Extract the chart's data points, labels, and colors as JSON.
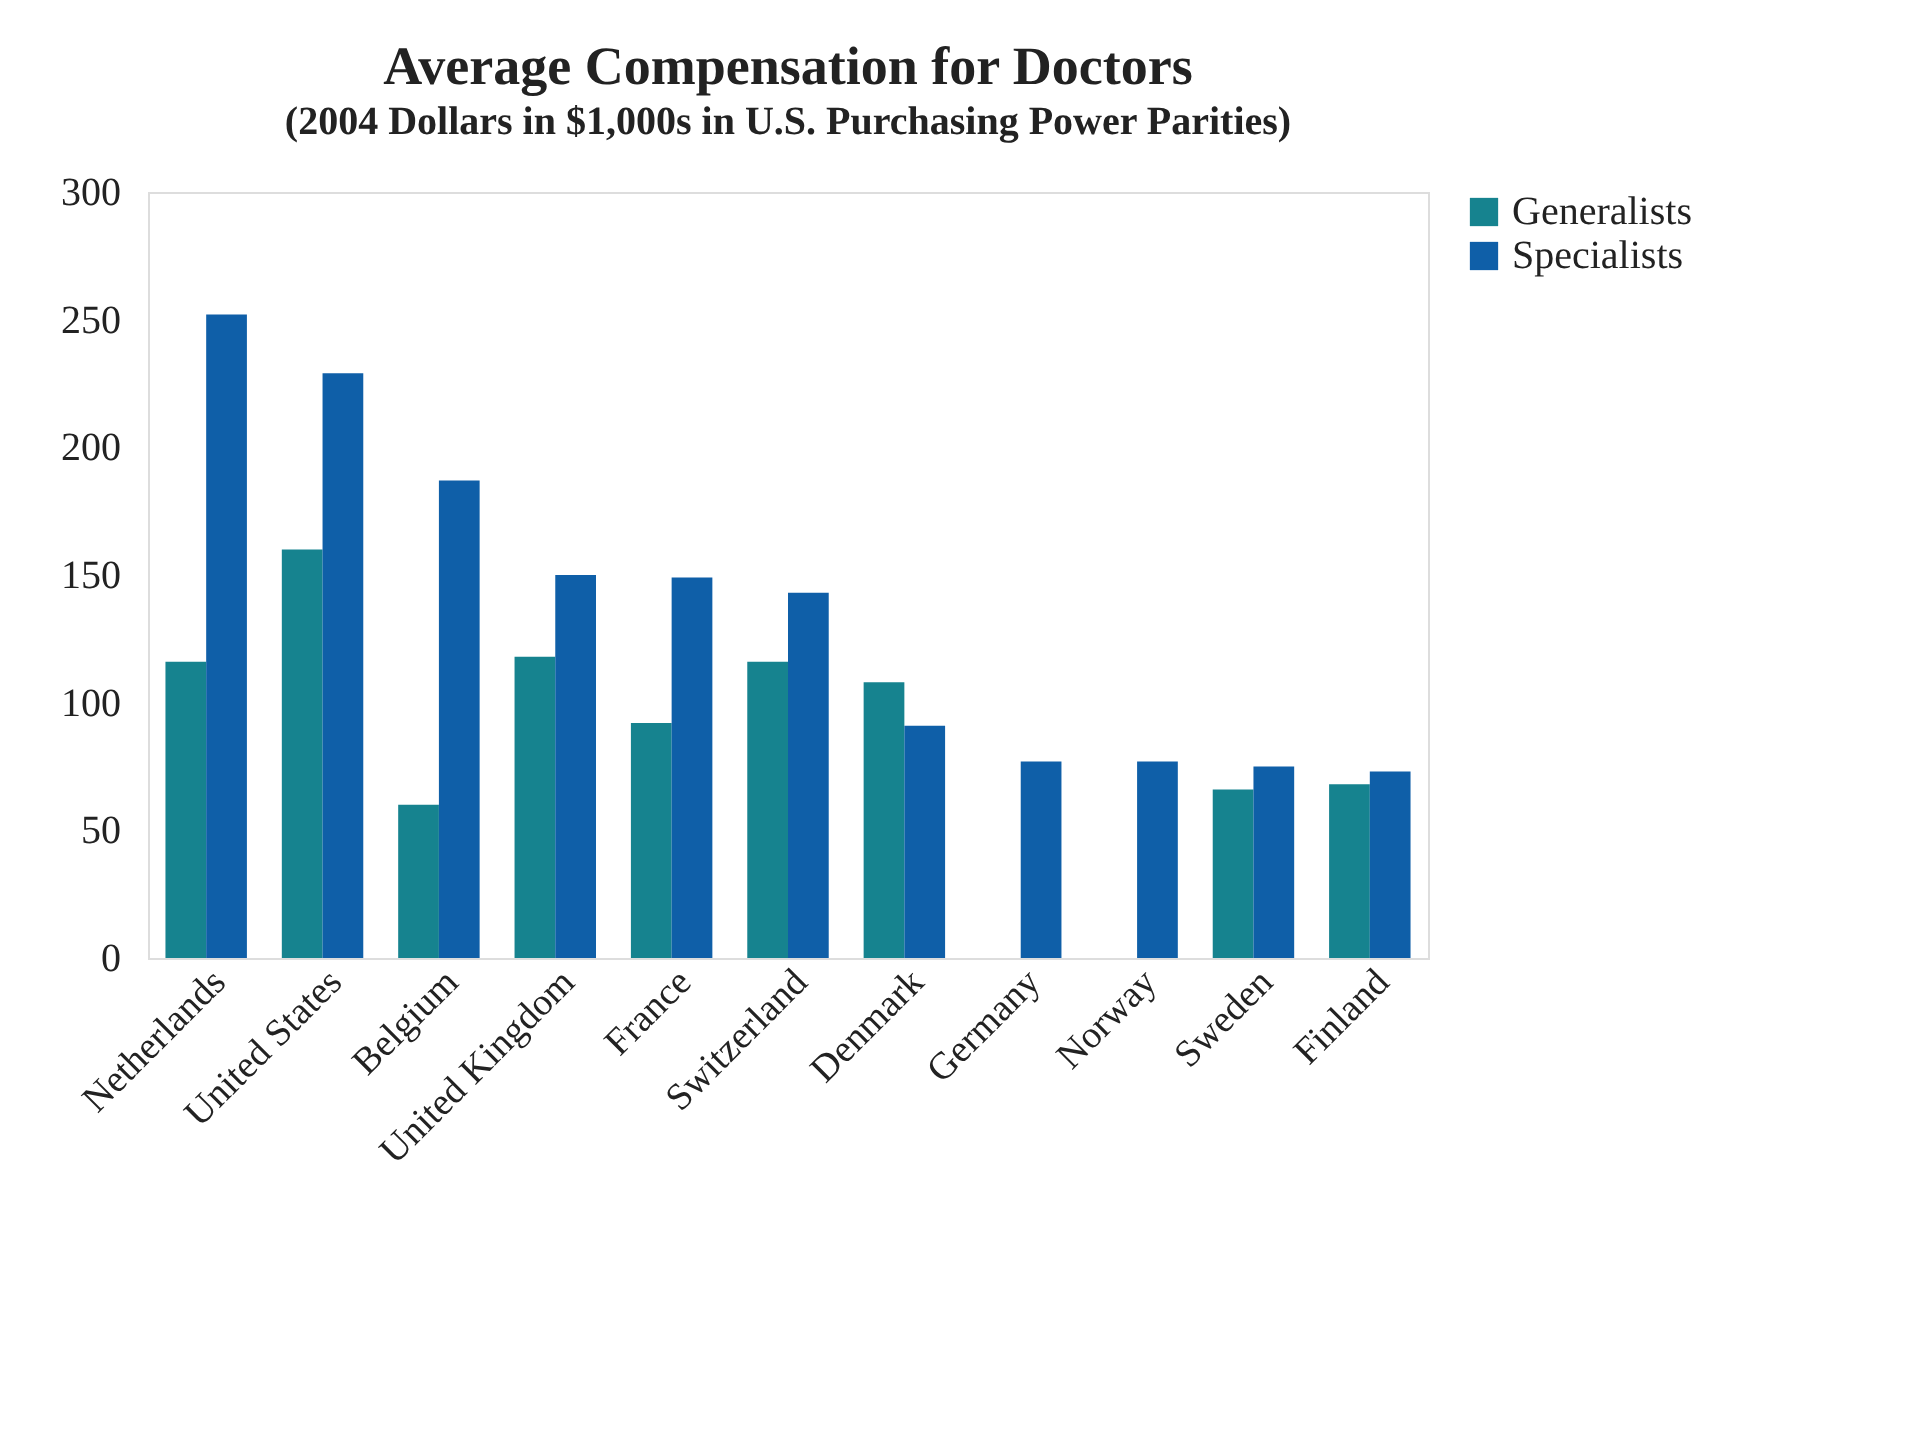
{
  "chart_data": {
    "type": "bar",
    "title": "Average Compensation for Doctors",
    "subtitle": "(2004 Dollars in $1,000s in U.S. Purchasing Power Parities)",
    "categories": [
      "Netherlands",
      "United States",
      "Belgium",
      "United Kingdom",
      "France",
      "Switzerland",
      "Denmark",
      "Germany",
      "Norway",
      "Sweden",
      "Finland"
    ],
    "series": [
      {
        "name": "Generalists",
        "color": "#16838f",
        "values": [
          116,
          160,
          60,
          118,
          92,
          116,
          108,
          null,
          null,
          66,
          68
        ]
      },
      {
        "name": "Specialists",
        "color": "#0f5fa8",
        "values": [
          252,
          229,
          187,
          150,
          149,
          143,
          91,
          77,
          77,
          75,
          73
        ]
      }
    ],
    "ylim": [
      0,
      300
    ],
    "yticks": [
      0,
      50,
      100,
      150,
      200,
      250,
      300
    ],
    "grid": false,
    "legend": "right"
  }
}
